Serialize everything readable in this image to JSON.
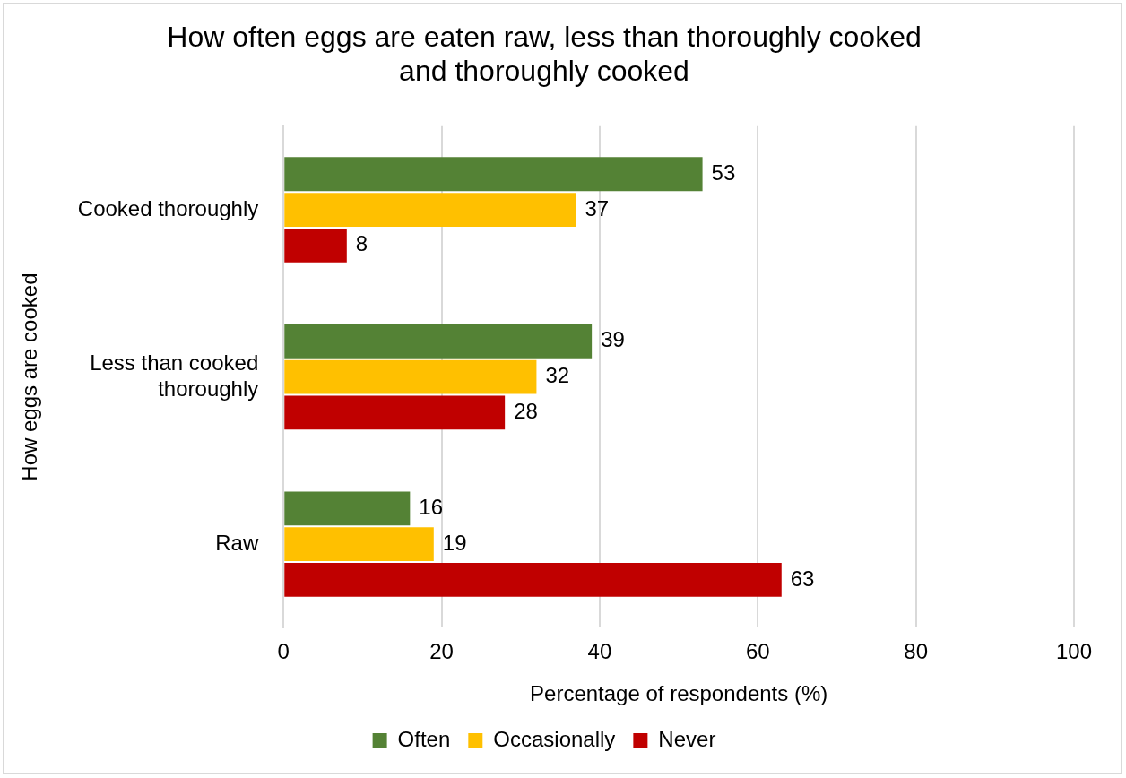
{
  "chart_data": {
    "type": "bar",
    "orientation": "horizontal",
    "title": "How often eggs are eaten raw, less than thoroughly cooked and thoroughly cooked",
    "xlabel": "Percentage of respondents (%)",
    "ylabel": "How eggs are cooked",
    "categories": [
      "Cooked thoroughly",
      "Less than cooked thoroughly",
      "Raw"
    ],
    "series": [
      {
        "name": "Often",
        "color": "#548235",
        "values": [
          53,
          39,
          16
        ]
      },
      {
        "name": "Occasionally",
        "color": "#ffc000",
        "values": [
          37,
          32,
          19
        ]
      },
      {
        "name": "Never",
        "color": "#c00000",
        "values": [
          8,
          28,
          63
        ]
      }
    ],
    "xlim": [
      0,
      100
    ],
    "xticks": [
      0,
      20,
      40,
      60,
      80,
      100
    ],
    "grid": "x",
    "legend": "bottom",
    "data_labels": true
  }
}
